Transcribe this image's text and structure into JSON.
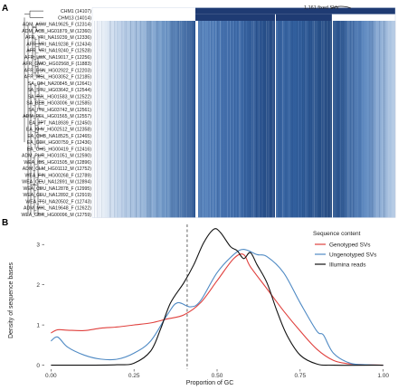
{
  "panel_a": {
    "letter": "A",
    "annotation": "1,161 fixed SVs",
    "samples": [
      "CHM1 (14107)",
      "CHM13 (14014)",
      "ADM_ASW_NA19625_F (12314)",
      "ADM_ACB_HG01879_M (12360)",
      "AFR_YRI_NA19239_M (12336)",
      "AFR_YRI_NA19238_F (12434)",
      "AFR_YRI_NA19240_F (12528)",
      "AFR_LWK_NA19017_F (12256)",
      "AFR_GWD_HG02568_F (11883)",
      "AFR_ESN_HG02922_F (12203)",
      "AFR_MSL_HG03052_F (12185)",
      "SA_GIH_NA20845_M (12641)",
      "SA_STU_HG03642_F (12544)",
      "SA_PJL_HG01583_M (12522)",
      "SA_BEB_HG03006_M (12585)",
      "SA_ITU_HG03742_M (12561)",
      "ADM_PEL_HG01565_M (12557)",
      "EA_JPT_NA18939_F (12450)",
      "EA_KHV_HG02512_M (12358)",
      "EA_CHB_NA18525_F (12465)",
      "EA_CDX_HG00759_F (12436)",
      "EA_CHS_HG00419_F (12416)",
      "ADM_PUR_HG01051_M (12590)",
      "WEA_IBS_HG01505_M (12896)",
      "ADM_CLM_HG01112_M (12752)",
      "WEA_FIN_HG00268_F (12789)",
      "WEA_CEU_NA12891_M (12894)",
      "WEA_CEU_NA12878_F (12995)",
      "WEA_CEU_NA12892_F (12919)",
      "WEA_TSI_NA20502_F (12743)",
      "ADM_MXL_NA19648_F (12622)",
      "WEA_GBR_HG00096_M (12759)"
    ],
    "colors": {
      "dark": "#1f3b73",
      "light": "#e6eef8",
      "mid": "#4a78b4"
    }
  },
  "panel_b": {
    "letter": "B",
    "chart_data": {
      "type": "line",
      "xlabel": "Proportion of GC",
      "ylabel": "Density of sequence bases",
      "xlim": [
        -0.02,
        1.02
      ],
      "ylim": [
        -0.1,
        3.5
      ],
      "xticks": [
        "0.00",
        "0.25",
        "0.50",
        "0.75",
        "1.00"
      ],
      "xtick_values": [
        0,
        0.25,
        0.5,
        0.75,
        1.0
      ],
      "yticks": [
        "0",
        "1",
        "2",
        "3"
      ],
      "ytick_values": [
        0,
        1,
        2,
        3
      ],
      "vline": 0.41,
      "legend": {
        "title": "Sequence content",
        "placement": "right",
        "entries": [
          "Genotyped SVs",
          "Ungenotyped SVs",
          "Illumina reads"
        ]
      },
      "series": [
        {
          "name": "Genotyped SVs",
          "color": "#e0413e",
          "x": [
            0.0,
            0.02,
            0.05,
            0.1,
            0.15,
            0.2,
            0.25,
            0.3,
            0.35,
            0.4,
            0.45,
            0.5,
            0.55,
            0.58,
            0.6,
            0.65,
            0.7,
            0.75,
            0.8,
            0.85,
            0.9,
            0.95,
            1.0
          ],
          "y": [
            0.8,
            0.88,
            0.87,
            0.86,
            0.92,
            0.95,
            1.0,
            1.05,
            1.15,
            1.25,
            1.55,
            2.1,
            2.65,
            2.75,
            2.45,
            1.9,
            1.35,
            0.85,
            0.4,
            0.12,
            0.03,
            0.01,
            0.0
          ]
        },
        {
          "name": "Ungenotyped SVs",
          "color": "#4f8ac4",
          "x": [
            0.0,
            0.02,
            0.05,
            0.1,
            0.15,
            0.2,
            0.25,
            0.3,
            0.35,
            0.38,
            0.42,
            0.45,
            0.5,
            0.55,
            0.58,
            0.62,
            0.65,
            0.7,
            0.75,
            0.8,
            0.82,
            0.85,
            0.9,
            0.95,
            1.0
          ],
          "y": [
            0.6,
            0.7,
            0.45,
            0.25,
            0.15,
            0.15,
            0.3,
            0.6,
            1.25,
            1.55,
            1.45,
            1.6,
            2.3,
            2.75,
            2.88,
            2.75,
            2.7,
            2.3,
            1.55,
            0.85,
            0.75,
            0.3,
            0.05,
            0.01,
            0.0
          ]
        },
        {
          "name": "Illumina reads",
          "color": "#111111",
          "x": [
            0.0,
            0.1,
            0.2,
            0.25,
            0.3,
            0.33,
            0.36,
            0.4,
            0.43,
            0.46,
            0.49,
            0.51,
            0.54,
            0.56,
            0.58,
            0.6,
            0.62,
            0.65,
            0.68,
            0.71,
            0.75,
            0.8,
            0.85,
            1.0
          ],
          "y": [
            0.0,
            0.0,
            0.01,
            0.05,
            0.35,
            0.9,
            1.55,
            2.05,
            2.5,
            3.05,
            3.38,
            3.3,
            2.95,
            2.85,
            2.65,
            2.8,
            2.5,
            2.05,
            1.35,
            0.75,
            0.25,
            0.03,
            0.0,
            0.0
          ]
        }
      ]
    }
  }
}
